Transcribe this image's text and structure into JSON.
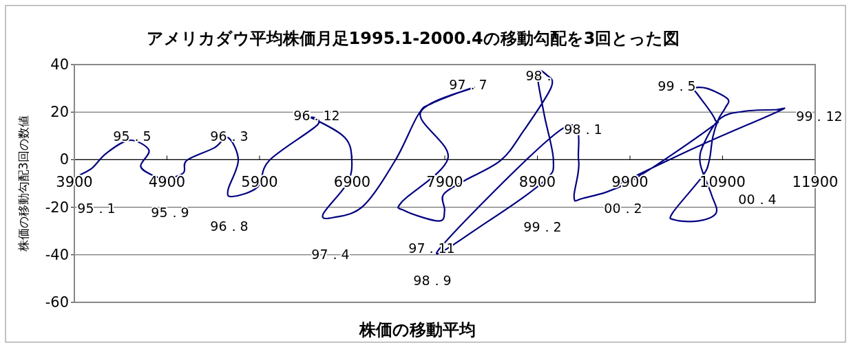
{
  "chart_data": {
    "type": "line",
    "title": "アメリカダウ平均株価月足1995.1-2000.4の移動勾配を3回とった図",
    "xlabel": "株価の移動平均",
    "ylabel": "株価の移動勾配3回の数値",
    "xlim": [
      3900,
      11900
    ],
    "xticks": [
      3900,
      4900,
      5900,
      6900,
      7900,
      8900,
      9900,
      10900,
      11900
    ],
    "ylim": [
      -60,
      40
    ],
    "yticks": [
      -60,
      -40,
      -20,
      0,
      20,
      40
    ],
    "grid": "y",
    "series": [
      {
        "color": "#000080",
        "x": [
          3926,
          4087,
          4245,
          4495,
          4705,
          4616,
          4743,
          4891,
          5077,
          5114,
          5411,
          5559,
          5670,
          5559,
          5609,
          5881,
          6005,
          6524,
          6463,
          6821,
          6896,
          6846,
          6586,
          6697,
          7019,
          7365,
          7613,
          7762,
          8219,
          7638,
          7935,
          7440,
          7465,
          7836,
          7898,
          7885,
          8108,
          8504,
          8752,
          9049,
          8999,
          8900,
          8974,
          9073,
          8974,
          8356,
          7836,
          9172,
          9345,
          9296,
          9395,
          9890,
          10756,
          10817,
          10630,
          10583,
          10731,
          10954,
          10929,
          10855,
          10793,
          10756,
          10682,
          10360,
          10384,
          10632,
          10830,
          10780,
          10657,
          10706,
          10880,
          11127,
          11474,
          11499,
          10630,
          9716
        ],
        "values": [
          -7.0,
          -3.7,
          2.7,
          8.2,
          4.0,
          -2.7,
          -6.5,
          -7.9,
          -5.6,
          -0.3,
          5.0,
          9.3,
          -0.3,
          -12.8,
          -15.5,
          -11.4,
          -0.3,
          14.6,
          17.5,
          9.3,
          -0.3,
          -9.9,
          -22.9,
          -24.3,
          -19.5,
          -0.3,
          18.9,
          23.7,
          30.4,
          19.9,
          0.7,
          -17.6,
          -21.4,
          -25.8,
          -21.4,
          -14.7,
          -8.9,
          -0.3,
          12.2,
          30.4,
          35.7,
          36.2,
          18.9,
          -0.3,
          -8.9,
          -26.2,
          -37.8,
          13.1,
          -0.3,
          -15.7,
          -16.2,
          -9.4,
          13.1,
          17.0,
          27.5,
          30.0,
          30.0,
          25.6,
          21.8,
          17.0,
          9.3,
          -0.3,
          -7.0,
          -22.4,
          -25.3,
          -25.8,
          -22.4,
          -14.7,
          -1.3,
          7.4,
          17.5,
          20.3,
          21.0,
          20.3,
          5.5,
          -11.4
        ]
      }
    ],
    "annotations": [
      "95．1",
      "95．5",
      "95．9",
      "96．3",
      "96．8",
      "96．12",
      "97．4",
      "97．7",
      "97．11",
      "98．",
      "98．1",
      "98．9",
      "99．2",
      "99．5",
      "99．12",
      "00．2",
      "00．4"
    ]
  }
}
